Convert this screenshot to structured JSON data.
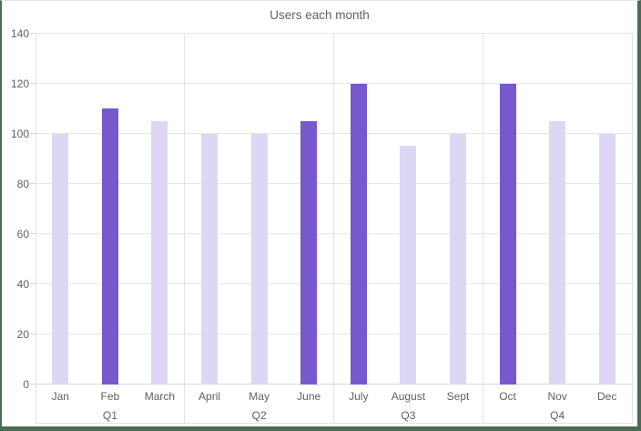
{
  "window": {
    "border_color": "#4b6b54",
    "top_border_color": "#e6e6e6",
    "background": "#ffffff"
  },
  "chart_data": {
    "type": "bar",
    "title": "Users each month",
    "xlabel": "",
    "ylabel": "",
    "categories": [
      "Jan",
      "Feb",
      "March",
      "April",
      "May",
      "June",
      "July",
      "August",
      "Sept",
      "Oct",
      "Nov",
      "Dec"
    ],
    "values": [
      100,
      110,
      105,
      100,
      100,
      105,
      120,
      95,
      100,
      120,
      105,
      100
    ],
    "emphasized": [
      false,
      true,
      false,
      false,
      false,
      true,
      true,
      false,
      false,
      true,
      false,
      false
    ],
    "group_labels": [
      "Q1",
      "Q2",
      "Q3",
      "Q4"
    ],
    "group_size": 3,
    "y_ticks": [
      0,
      20,
      40,
      60,
      80,
      100,
      120,
      140
    ],
    "ylim": [
      0,
      140
    ],
    "grid": true,
    "legend": "none",
    "colors": {
      "bar_normal": "#ded7f4",
      "bar_emphasized": "#7659cc",
      "gridline": "#e6e6e6",
      "axis_line": "#d6d6d6",
      "separator": "#e3e3e3",
      "text": "#616161",
      "title_text": "#5f6368"
    }
  }
}
